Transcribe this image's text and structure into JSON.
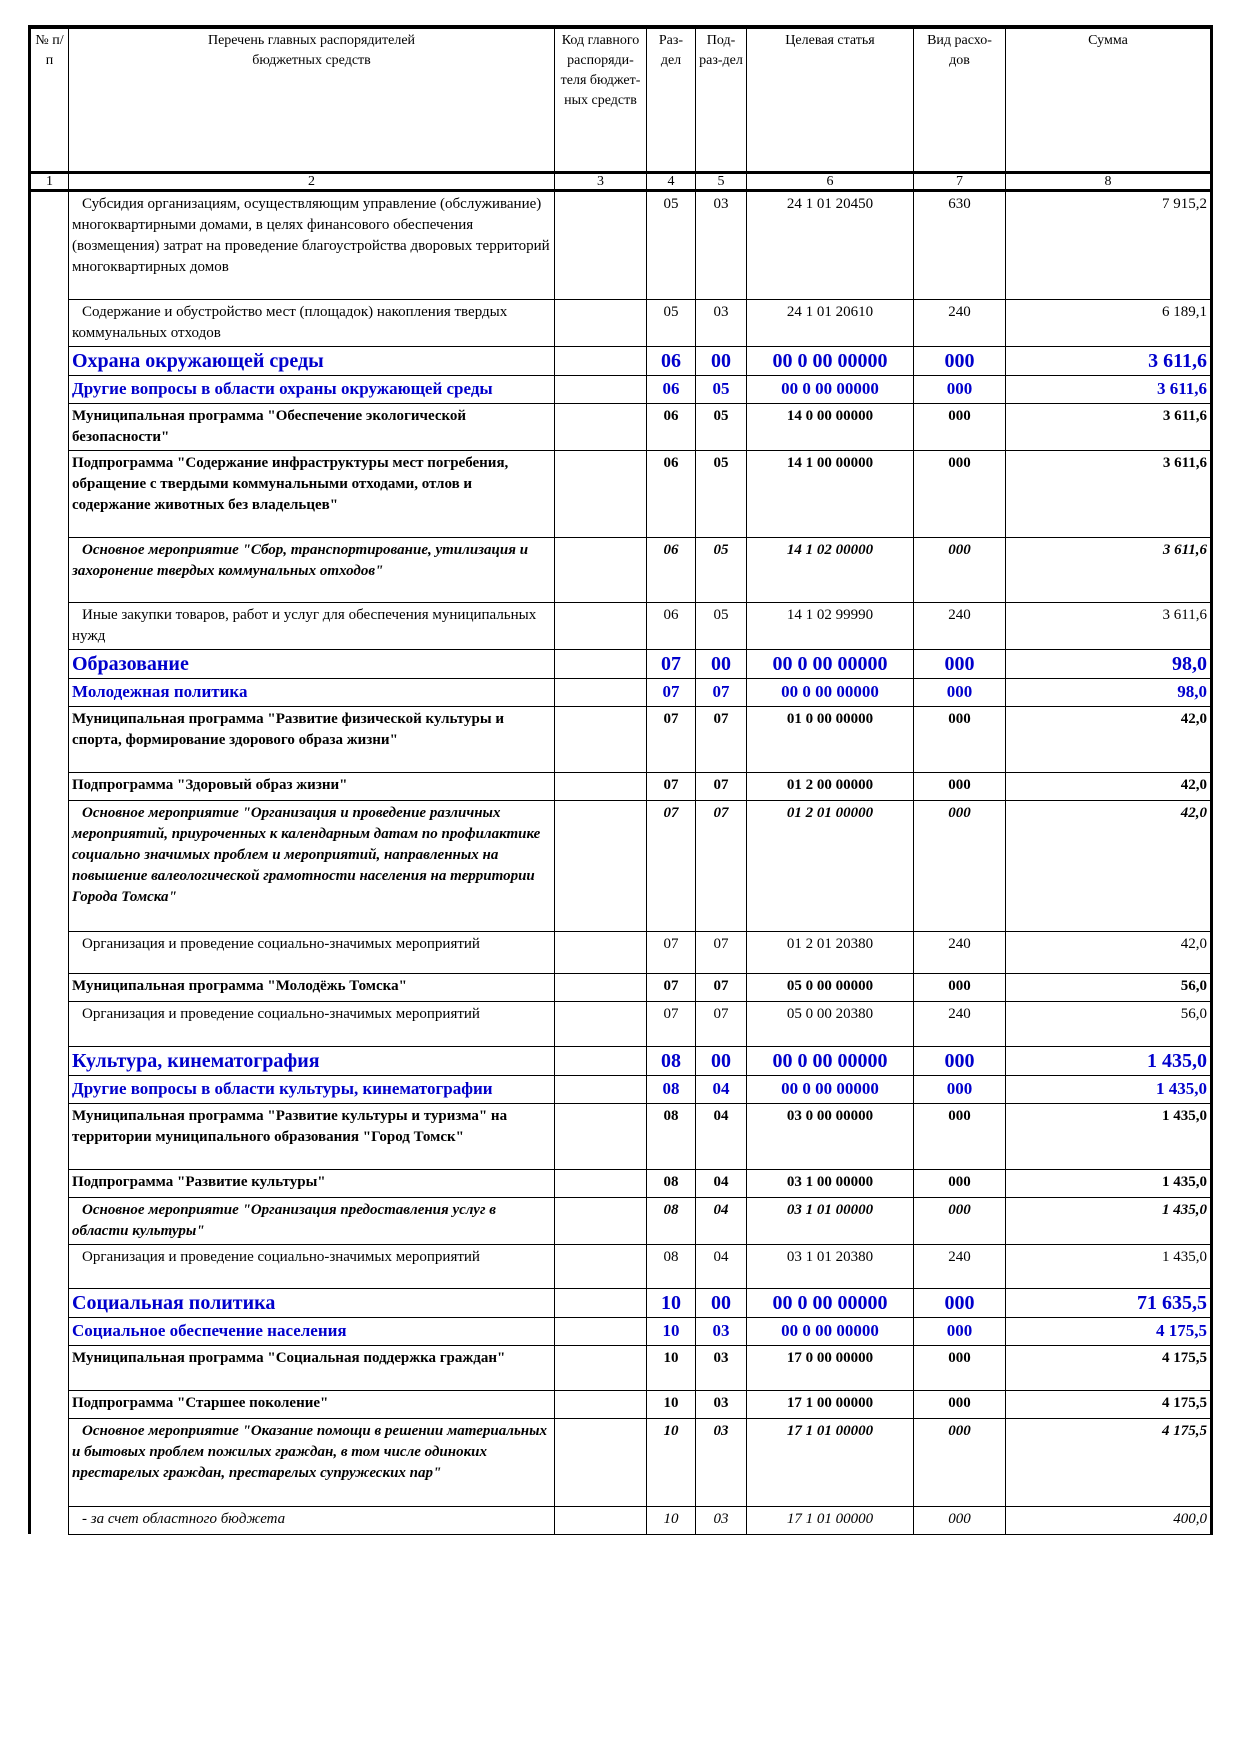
{
  "header": {
    "cols": [
      "№ п/п",
      "Перечень главных распорядителей бюджетных средств",
      "Код главного распоряди-теля бюджет-ных средств",
      "Раз-дел",
      "Под-раз-дел",
      "Целевая статья",
      "Вид расхо-дов",
      "Сумма"
    ],
    "numbers": [
      "1",
      "2",
      "3",
      "4",
      "5",
      "6",
      "7",
      "8"
    ]
  },
  "colors": {
    "section": "#0000cc",
    "text": "#000000"
  },
  "rows": [
    {
      "style": "normal",
      "name": "Субсидия организациям, осуществляющим управление (обслуживание) многоквартирными домами, в целях финансового обеспечения (возмещения) затрат на проведение благоустройства дворовых территорий многоквартирных домов",
      "code": "",
      "razdel": "05",
      "podrazdel": "03",
      "statya": "24 1 01 20450",
      "vid": "630",
      "sum": "7 915,2"
    },
    {
      "style": "normal",
      "name": "Содержание и обустройство мест (площадок) накопления твердых коммунальных отходов",
      "code": "",
      "razdel": "05",
      "podrazdel": "03",
      "statya": "24 1 01 20610",
      "vid": "240",
      "sum": "6 189,1"
    },
    {
      "style": "sec",
      "name": "Охрана окружающей среды",
      "code": "",
      "razdel": "06",
      "podrazdel": "00",
      "statya": "00 0 00 00000",
      "vid": "000",
      "sum": "3 611,6"
    },
    {
      "style": "sub",
      "name": "Другие вопросы в области охраны окружающей среды",
      "code": "",
      "razdel": "06",
      "podrazdel": "05",
      "statya": "00 0 00 00000",
      "vid": "000",
      "sum": "3 611,6"
    },
    {
      "style": "bold",
      "name": "Муниципальная программа \"Обеспечение экологической безопасности\"",
      "code": "",
      "razdel": "06",
      "podrazdel": "05",
      "statya": "14 0 00 00000",
      "vid": "000",
      "sum": "3 611,6"
    },
    {
      "style": "bold",
      "name": "Подпрограмма \"Содержание инфраструктуры мест погребения, обращение с твердыми коммунальными отходами, отлов и содержание животных без владельцев\"",
      "code": "",
      "razdel": "06",
      "podrazdel": "05",
      "statya": "14 1 00 00000",
      "vid": "000",
      "sum": "3 611,6"
    },
    {
      "style": "bi",
      "name": "Основное мероприятие \"Сбор, транспортирование, утилизация и захоронение твердых коммунальных отходов\"",
      "code": "",
      "razdel": "06",
      "podrazdel": "05",
      "statya": "14 1 02 00000",
      "vid": "000",
      "sum": "3 611,6"
    },
    {
      "style": "normal",
      "name": "Иные закупки товаров, работ и услуг для обеспечения муниципальных нужд",
      "code": "",
      "razdel": "06",
      "podrazdel": "05",
      "statya": "14 1 02 99990",
      "vid": "240",
      "sum": "3 611,6"
    },
    {
      "style": "sec",
      "name": "Образование",
      "code": "",
      "razdel": "07",
      "podrazdel": "00",
      "statya": "00 0 00 00000",
      "vid": "000",
      "sum": "98,0"
    },
    {
      "style": "sub",
      "name": "Молодежная политика",
      "code": "",
      "razdel": "07",
      "podrazdel": "07",
      "statya": "00 0 00 00000",
      "vid": "000",
      "sum": "98,0"
    },
    {
      "style": "bold",
      "name": "Муниципальная программа \"Развитие физической культуры и спорта, формирование здорового образа жизни\"",
      "code": "",
      "razdel": "07",
      "podrazdel": "07",
      "statya": "01 0 00 00000",
      "vid": "000",
      "sum": "42,0"
    },
    {
      "style": "bold",
      "name": "Подпрограмма \"Здоровый образ жизни\"",
      "code": "",
      "razdel": "07",
      "podrazdel": "07",
      "statya": "01 2 00 00000",
      "vid": "000",
      "sum": "42,0"
    },
    {
      "style": "bi",
      "name": "Основное мероприятие \"Организация и проведение различных мероприятий, приуроченных к календарным датам по профилактике социально значимых проблем и мероприятий, направленных на повышение валеологической грамотности населения на территории Города Томска\"",
      "code": "",
      "razdel": "07",
      "podrazdel": "07",
      "statya": "01 2 01 00000",
      "vid": "000",
      "sum": "42,0"
    },
    {
      "style": "normal",
      "name": "Организация и проведение социально-значимых мероприятий",
      "code": "",
      "razdel": "07",
      "podrazdel": "07",
      "statya": "01 2 01 20380",
      "vid": "240",
      "sum": "42,0"
    },
    {
      "style": "bold",
      "name": "Муниципальная программа \"Молодёжь Томска\"",
      "code": "",
      "razdel": "07",
      "podrazdel": "07",
      "statya": "05 0 00 00000",
      "vid": "000",
      "sum": "56,0"
    },
    {
      "style": "normal",
      "name": "Организация и проведение социально-значимых мероприятий",
      "code": "",
      "razdel": "07",
      "podrazdel": "07",
      "statya": "05 0 00 20380",
      "vid": "240",
      "sum": "56,0"
    },
    {
      "style": "sec",
      "name": "Культура, кинематография",
      "code": "",
      "razdel": "08",
      "podrazdel": "00",
      "statya": "00 0 00 00000",
      "vid": "000",
      "sum": "1 435,0"
    },
    {
      "style": "sub",
      "name": "Другие вопросы в области культуры, кинематографии",
      "code": "",
      "razdel": "08",
      "podrazdel": "04",
      "statya": "00 0 00 00000",
      "vid": "000",
      "sum": "1 435,0"
    },
    {
      "style": "bold",
      "name": "Муниципальная программа \"Развитие культуры и туризма\" на территории муниципального образования \"Город Томск\"",
      "code": "",
      "razdel": "08",
      "podrazdel": "04",
      "statya": "03 0 00 00000",
      "vid": "000",
      "sum": "1 435,0"
    },
    {
      "style": "bold",
      "name": "Подпрограмма \"Развитие культуры\"",
      "code": "",
      "razdel": "08",
      "podrazdel": "04",
      "statya": "03 1 00 00000",
      "vid": "000",
      "sum": "1 435,0"
    },
    {
      "style": "bi",
      "name": "Основное мероприятие \"Организация предоставления услуг в области культуры\"",
      "code": "",
      "razdel": "08",
      "podrazdel": "04",
      "statya": "03 1 01 00000",
      "vid": "000",
      "sum": "1 435,0"
    },
    {
      "style": "normal",
      "name": "Организация и проведение социально-значимых мероприятий",
      "code": "",
      "razdel": "08",
      "podrazdel": "04",
      "statya": "03 1 01 20380",
      "vid": "240",
      "sum": "1 435,0"
    },
    {
      "style": "sec",
      "name": "Социальная политика",
      "code": "",
      "razdel": "10",
      "podrazdel": "00",
      "statya": "00 0 00 00000",
      "vid": "000",
      "sum": "71 635,5"
    },
    {
      "style": "sub",
      "name": "Социальное обеспечение населения",
      "code": "",
      "razdel": "10",
      "podrazdel": "03",
      "statya": "00 0 00 00000",
      "vid": "000",
      "sum": "4 175,5"
    },
    {
      "style": "bold",
      "name": "Муниципальная программа \"Социальная поддержка граждан\"",
      "code": "",
      "razdel": "10",
      "podrazdel": "03",
      "statya": "17 0 00 00000",
      "vid": "000",
      "sum": "4 175,5"
    },
    {
      "style": "bold",
      "name": "Подпрограмма \"Старшее поколение\"",
      "code": "",
      "razdel": "10",
      "podrazdel": "03",
      "statya": "17 1 00 00000",
      "vid": "000",
      "sum": "4 175,5"
    },
    {
      "style": "bi",
      "name": "Основное мероприятие \"Оказание помощи в решении материальных и бытовых проблем пожилых граждан, в том числе одиноких престарелых граждан, престарелых супружеских пар\"",
      "code": "",
      "razdel": "10",
      "podrazdel": "03",
      "statya": "17 1 01 00000",
      "vid": "000",
      "sum": "4 175,5"
    },
    {
      "style": "it",
      "name": "- за счет областного бюджета",
      "code": "",
      "razdel": "10",
      "podrazdel": "03",
      "statya": "17 1 01 00000",
      "vid": "000",
      "sum": "400,0"
    }
  ]
}
